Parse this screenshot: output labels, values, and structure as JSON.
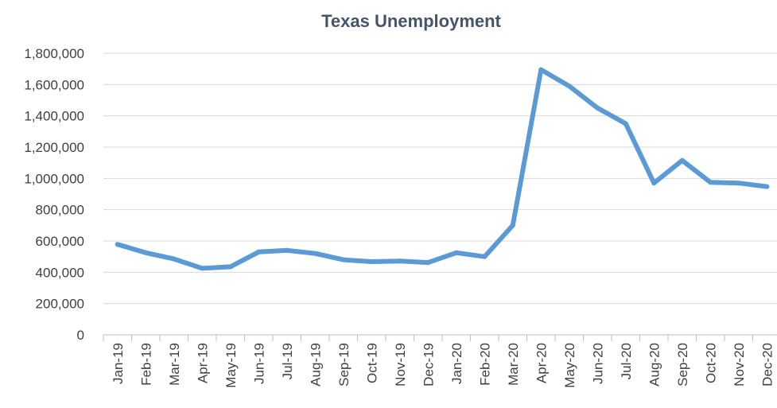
{
  "chart_data": {
    "type": "line",
    "title": "Texas Unemployment",
    "xlabel": "",
    "ylabel": "",
    "categories": [
      "Jan-19",
      "Feb-19",
      "Mar-19",
      "Apr-19",
      "May-19",
      "Jun-19",
      "Jul-19",
      "Aug-19",
      "Sep-19",
      "Oct-19",
      "Nov-19",
      "Dec-19",
      "Jan-20",
      "Feb-20",
      "Mar-20",
      "Apr-20",
      "May-20",
      "Jun-20",
      "Jul-20",
      "Aug-20",
      "Sep-20",
      "Oct-20",
      "Nov-20",
      "Dec-20"
    ],
    "series": [
      {
        "values": [
          578000,
          525000,
          485000,
          425000,
          435000,
          530000,
          540000,
          520000,
          480000,
          468000,
          472000,
          462000,
          525000,
          500000,
          700000,
          1695000,
          1590000,
          1450000,
          1350000,
          970000,
          1115000,
          975000,
          970000,
          948000
        ],
        "color": "#5b9bd5"
      }
    ],
    "yticks": [
      "0",
      "200,000",
      "400,000",
      "600,000",
      "800,000",
      "1,000,000",
      "1,200,000",
      "1,400,000",
      "1,600,000",
      "1,800,000"
    ],
    "ylim": [
      0,
      1800000
    ],
    "grid": true,
    "legend": "none",
    "gridline_color": "#d9d9d9",
    "axis_color": "#bfbfbf"
  }
}
